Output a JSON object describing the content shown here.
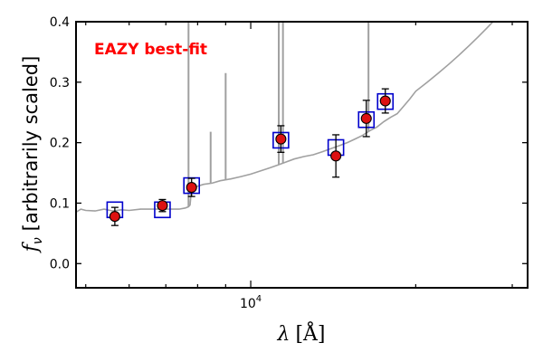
{
  "chart_data": {
    "type": "scatter",
    "annotation": "EAZY best-fit",
    "annotation_color": "#ff0000",
    "xlabel_symbol": "λ",
    "xlabel_unit": "[Å]",
    "ylabel_symbol": "f",
    "ylabel_subscript": "ν",
    "ylabel_text": "[arbitrarily scaled]",
    "x_scale": "log",
    "xlim": [
      4800,
      32000
    ],
    "ylim": [
      -0.04,
      0.4
    ],
    "y_ticks": [
      "0.0",
      "0.1",
      "0.2",
      "0.3",
      "0.4"
    ],
    "x_ticks": [
      {
        "value": 10000,
        "base": "10",
        "exp": "4"
      }
    ],
    "grid": false,
    "colors": {
      "model": "#a0a0a0",
      "template_box": "#0000cc",
      "point_fill": "#dd1111",
      "errorbar": "#000000"
    },
    "model_spectrum": {
      "x": [
        4800,
        4900,
        5000,
        5200,
        5400,
        5600,
        5800,
        6000,
        6300,
        6600,
        6900,
        7200,
        7400,
        7600,
        7700,
        7750,
        7800,
        7850,
        7900,
        8000,
        8200,
        8500,
        8800,
        9200,
        9600,
        10000,
        10400,
        10800,
        11200,
        11600,
        12000,
        12500,
        13000,
        13500,
        14000,
        14500,
        15000,
        15500,
        16000,
        16500,
        17000,
        17500,
        18000,
        18500,
        19000,
        19500,
        20000,
        21000,
        22000,
        23000,
        24000,
        25000,
        26000,
        27000,
        28000,
        30000,
        32000
      ],
      "y": [
        0.085,
        0.09,
        0.088,
        0.087,
        0.09,
        0.087,
        0.089,
        0.088,
        0.09,
        0.09,
        0.09,
        0.09,
        0.09,
        0.092,
        0.094,
        0.097,
        0.125,
        0.125,
        0.126,
        0.128,
        0.131,
        0.133,
        0.137,
        0.14,
        0.144,
        0.148,
        0.153,
        0.158,
        0.163,
        0.168,
        0.173,
        0.177,
        0.18,
        0.185,
        0.19,
        0.195,
        0.2,
        0.206,
        0.212,
        0.22,
        0.226,
        0.235,
        0.242,
        0.248,
        0.26,
        0.272,
        0.285,
        0.3,
        0.315,
        0.33,
        0.345,
        0.36,
        0.375,
        0.39,
        0.405,
        0.42,
        0.44
      ]
    },
    "emission_lines": [
      {
        "x": 7700,
        "y_top": 0.42
      },
      {
        "x": 8450,
        "y_top": 0.218
      },
      {
        "x": 9000,
        "y_top": 0.315
      },
      {
        "x": 11250,
        "y_top": 0.42
      },
      {
        "x": 11450,
        "y_top": 0.42
      },
      {
        "x": 16400,
        "y_top": 0.42
      }
    ],
    "template_points": [
      {
        "x": 5650,
        "y": 0.089
      },
      {
        "x": 6900,
        "y": 0.089
      },
      {
        "x": 7800,
        "y": 0.129
      },
      {
        "x": 11350,
        "y": 0.204
      },
      {
        "x": 14300,
        "y": 0.192
      },
      {
        "x": 16250,
        "y": 0.238
      },
      {
        "x": 17600,
        "y": 0.268
      }
    ],
    "observed_points": [
      {
        "x": 5650,
        "y": 0.078,
        "yerr": 0.015
      },
      {
        "x": 6900,
        "y": 0.096,
        "yerr": 0.01
      },
      {
        "x": 7800,
        "y": 0.126,
        "yerr": 0.015
      },
      {
        "x": 11350,
        "y": 0.206,
        "yerr": 0.022
      },
      {
        "x": 14300,
        "y": 0.178,
        "yerr": 0.035
      },
      {
        "x": 16250,
        "y": 0.24,
        "yerr": 0.03
      },
      {
        "x": 17600,
        "y": 0.269,
        "yerr": 0.02
      }
    ]
  }
}
